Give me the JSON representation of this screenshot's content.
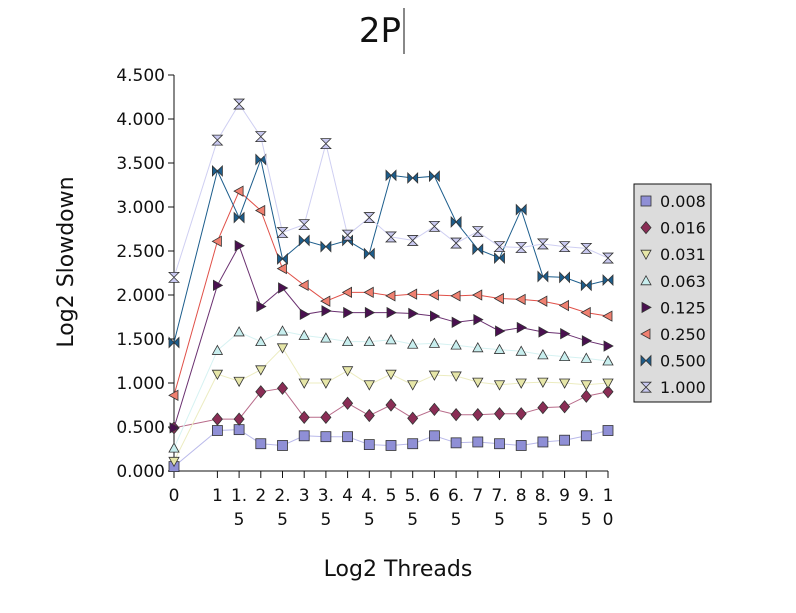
{
  "chart_data": {
    "type": "line",
    "title": "2P",
    "xlabel": "Log2 Threads",
    "ylabel": "Log2 Slowdown",
    "ylim": [
      0,
      4.5
    ],
    "yticks": [
      "0.000",
      "0.500",
      "1.000",
      "1.500",
      "2.000",
      "2.500",
      "3.000",
      "3.500",
      "4.000",
      "4.500"
    ],
    "categories": [
      [
        "0"
      ],
      [
        "1"
      ],
      [
        "1.",
        "5"
      ],
      [
        "2"
      ],
      [
        "2.",
        "5"
      ],
      [
        "3"
      ],
      [
        "3.",
        "5"
      ],
      [
        "4"
      ],
      [
        "4.",
        "5"
      ],
      [
        "5"
      ],
      [
        "5.",
        "5"
      ],
      [
        "6"
      ],
      [
        "6.",
        "5"
      ],
      [
        "7"
      ],
      [
        "7.",
        "5"
      ],
      [
        "8"
      ],
      [
        "8.",
        "5"
      ],
      [
        "9"
      ],
      [
        "9.",
        "5"
      ],
      [
        "1",
        "0"
      ]
    ],
    "x": [
      0,
      1,
      1.5,
      2,
      2.5,
      3,
      3.5,
      4,
      4.5,
      5,
      5.5,
      6,
      6.5,
      7,
      7.5,
      8,
      8.5,
      9,
      9.5,
      10
    ],
    "grid": false,
    "legend_position": "right",
    "series": [
      {
        "name": "0.008",
        "marker": "square",
        "color": "#8f8fd6",
        "line": "#b9b9ea",
        "values": [
          0.05,
          0.46,
          0.47,
          0.31,
          0.29,
          0.4,
          0.39,
          0.39,
          0.3,
          0.29,
          0.31,
          0.4,
          0.32,
          0.33,
          0.31,
          0.29,
          0.33,
          0.35,
          0.4,
          0.46
        ]
      },
      {
        "name": "0.016",
        "marker": "diamond",
        "color": "#8a2d55",
        "line": "#b86b8a",
        "values": [
          0.49,
          0.59,
          0.59,
          0.9,
          0.94,
          0.61,
          0.61,
          0.77,
          0.63,
          0.75,
          0.6,
          0.7,
          0.64,
          0.64,
          0.65,
          0.65,
          0.72,
          0.73,
          0.85,
          0.9
        ]
      },
      {
        "name": "0.031",
        "marker": "triangle-down",
        "color": "#e6e6a8",
        "line": "#ececc0",
        "values": [
          0.11,
          1.1,
          1.02,
          1.15,
          1.4,
          1.0,
          1.0,
          1.14,
          0.98,
          1.1,
          0.98,
          1.09,
          1.08,
          1.01,
          0.98,
          1.0,
          1.01,
          1.0,
          0.98,
          1.0
        ]
      },
      {
        "name": "0.063",
        "marker": "triangle-up",
        "color": "#c8eeee",
        "line": "#d6f2f2",
        "values": [
          0.26,
          1.37,
          1.58,
          1.47,
          1.59,
          1.54,
          1.51,
          1.47,
          1.47,
          1.49,
          1.44,
          1.45,
          1.43,
          1.4,
          1.38,
          1.36,
          1.32,
          1.3,
          1.28,
          1.25
        ]
      },
      {
        "name": "0.125",
        "marker": "triangle-right",
        "color": "#4a1050",
        "line": "#6a3070",
        "values": [
          0.49,
          2.11,
          2.56,
          1.87,
          2.08,
          1.78,
          1.82,
          1.8,
          1.8,
          1.8,
          1.79,
          1.76,
          1.69,
          1.72,
          1.59,
          1.63,
          1.58,
          1.56,
          1.48,
          1.42
        ]
      },
      {
        "name": "0.250",
        "marker": "triangle-left",
        "color": "#f08070",
        "line": "#e05048",
        "values": [
          0.86,
          2.61,
          3.18,
          2.96,
          2.3,
          2.11,
          1.93,
          2.03,
          2.03,
          1.99,
          2.01,
          2.0,
          1.99,
          2.0,
          1.96,
          1.95,
          1.93,
          1.88,
          1.8,
          1.76
        ]
      },
      {
        "name": "0.500",
        "marker": "bowtie-h",
        "color": "#1c5d8c",
        "line": "#1c5d8c",
        "values": [
          1.46,
          3.41,
          2.88,
          3.54,
          2.41,
          2.62,
          2.55,
          2.62,
          2.47,
          3.36,
          3.33,
          3.35,
          2.83,
          2.52,
          2.42,
          2.97,
          2.21,
          2.2,
          2.11,
          2.17
        ]
      },
      {
        "name": "1.000",
        "marker": "bowtie-v",
        "color": "#c9c9f0",
        "line": "#cfcff2",
        "values": [
          2.2,
          3.76,
          4.17,
          3.8,
          2.71,
          2.8,
          3.72,
          2.68,
          2.88,
          2.66,
          2.62,
          2.78,
          2.59,
          2.72,
          2.55,
          2.54,
          2.58,
          2.55,
          2.53,
          2.42
        ]
      }
    ]
  }
}
